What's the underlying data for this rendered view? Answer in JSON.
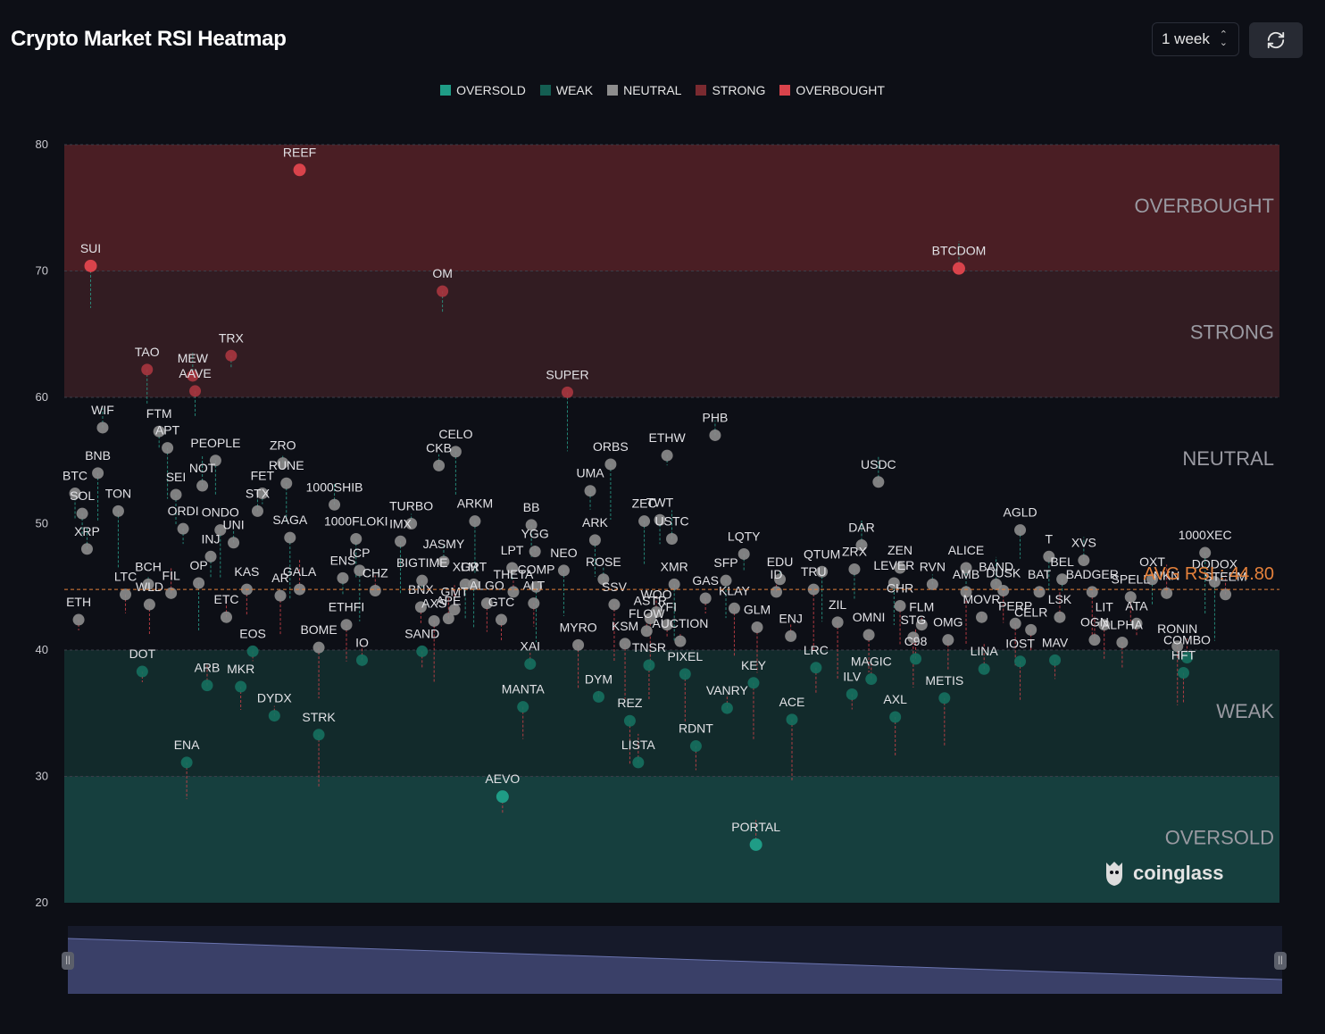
{
  "header": {
    "title": "Crypto Market RSI Heatmap"
  },
  "controls": {
    "period": "1 week",
    "refresh_icon": "refresh-icon"
  },
  "legend": [
    {
      "label": "OVERSOLD",
      "color": "#1f9c86"
    },
    {
      "label": "WEAK",
      "color": "#145e52"
    },
    {
      "label": "NEUTRAL",
      "color": "#8d8d8d"
    },
    {
      "label": "STRONG",
      "color": "#7a2a30"
    },
    {
      "label": "OVERBOUGHT",
      "color": "#d9434b"
    }
  ],
  "logo": {
    "text": "coinglass"
  },
  "chart_data": {
    "type": "scatter",
    "title": "Crypto Market RSI Heatmap",
    "ylim": [
      20,
      80
    ],
    "yticks": [
      20,
      30,
      40,
      50,
      60,
      70,
      80
    ],
    "grid": false,
    "zones": [
      {
        "label": "OVERBOUGHT",
        "from": 70,
        "to": 80,
        "color": "#4a1e24"
      },
      {
        "label": "STRONG",
        "from": 60,
        "to": 70,
        "color": "#321c22"
      },
      {
        "label": "NEUTRAL",
        "from": 40,
        "to": 60,
        "color": "#0d0f16"
      },
      {
        "label": "WEAK",
        "from": 30,
        "to": 40,
        "color": "#122a2b"
      },
      {
        "label": "OVERSOLD",
        "from": 20,
        "to": 30,
        "color": "#163f3e"
      }
    ],
    "average": {
      "label": "AVG RSI : 44.80",
      "value": 44.8
    },
    "points": [
      {
        "name": "REEF",
        "x": 0.19,
        "rsi": 78.0
      },
      {
        "name": "SUI",
        "x": 0.016,
        "rsi": 70.4
      },
      {
        "name": "OM",
        "x": 0.309,
        "rsi": 68.4
      },
      {
        "name": "BTCDOM",
        "x": 0.739,
        "rsi": 70.2
      },
      {
        "name": "TAO",
        "x": 0.063,
        "rsi": 62.2
      },
      {
        "name": "TRX",
        "x": 0.133,
        "rsi": 63.3
      },
      {
        "name": "MEW",
        "x": 0.101,
        "rsi": 61.7
      },
      {
        "name": "AAVE",
        "x": 0.103,
        "rsi": 60.5
      },
      {
        "name": "SUPER",
        "x": 0.413,
        "rsi": 60.4
      },
      {
        "name": "WIF",
        "x": 0.026,
        "rsi": 57.6
      },
      {
        "name": "FTM",
        "x": 0.073,
        "rsi": 57.3
      },
      {
        "name": "APT",
        "x": 0.08,
        "rsi": 56.0
      },
      {
        "name": "PHB",
        "x": 0.536,
        "rsi": 57.0
      },
      {
        "name": "ETHW",
        "x": 0.496,
        "rsi": 55.4
      },
      {
        "name": "CELO",
        "x": 0.32,
        "rsi": 55.7
      },
      {
        "name": "CKB",
        "x": 0.306,
        "rsi": 54.6
      },
      {
        "name": "ORBS",
        "x": 0.449,
        "rsi": 54.7
      },
      {
        "name": "PEOPLE",
        "x": 0.12,
        "rsi": 55.0
      },
      {
        "name": "ZRO",
        "x": 0.176,
        "rsi": 54.8
      },
      {
        "name": "BNB",
        "x": 0.022,
        "rsi": 54.0
      },
      {
        "name": "BTC",
        "x": 0.003,
        "rsi": 52.4
      },
      {
        "name": "NOT",
        "x": 0.109,
        "rsi": 53.0
      },
      {
        "name": "RUNE",
        "x": 0.179,
        "rsi": 53.2
      },
      {
        "name": "UMA",
        "x": 0.432,
        "rsi": 52.6
      },
      {
        "name": "USDC",
        "x": 0.672,
        "rsi": 53.3
      },
      {
        "name": "SEI",
        "x": 0.087,
        "rsi": 52.3
      },
      {
        "name": "FET",
        "x": 0.159,
        "rsi": 52.4
      },
      {
        "name": "1000SHIB",
        "x": 0.219,
        "rsi": 51.5
      },
      {
        "name": "SOL",
        "x": 0.009,
        "rsi": 50.8
      },
      {
        "name": "TON",
        "x": 0.039,
        "rsi": 51.0
      },
      {
        "name": "STX",
        "x": 0.155,
        "rsi": 51.0
      },
      {
        "name": "ORDI",
        "x": 0.093,
        "rsi": 49.6
      },
      {
        "name": "ONDO",
        "x": 0.124,
        "rsi": 49.5
      },
      {
        "name": "UNI",
        "x": 0.135,
        "rsi": 48.5
      },
      {
        "name": "SAGA",
        "x": 0.182,
        "rsi": 48.9
      },
      {
        "name": "1000FLOKI",
        "x": 0.237,
        "rsi": 48.8
      },
      {
        "name": "TURBO",
        "x": 0.283,
        "rsi": 50.0
      },
      {
        "name": "ARKM",
        "x": 0.336,
        "rsi": 50.2
      },
      {
        "name": "BB",
        "x": 0.383,
        "rsi": 49.9
      },
      {
        "name": "YGG",
        "x": 0.386,
        "rsi": 47.8
      },
      {
        "name": "ZEC",
        "x": 0.477,
        "rsi": 50.2
      },
      {
        "name": "TWT",
        "x": 0.49,
        "rsi": 50.3
      },
      {
        "name": "USTC",
        "x": 0.5,
        "rsi": 48.8
      },
      {
        "name": "ARK",
        "x": 0.436,
        "rsi": 48.7
      },
      {
        "name": "LQTY",
        "x": 0.56,
        "rsi": 47.6
      },
      {
        "name": "DAR",
        "x": 0.658,
        "rsi": 48.3
      },
      {
        "name": "AGLD",
        "x": 0.79,
        "rsi": 49.5
      },
      {
        "name": "1000XEC",
        "x": 0.944,
        "rsi": 47.7
      },
      {
        "name": "XRP",
        "x": 0.013,
        "rsi": 48.0
      },
      {
        "name": "INJ",
        "x": 0.116,
        "rsi": 47.4
      },
      {
        "name": "IMX",
        "x": 0.274,
        "rsi": 48.6
      },
      {
        "name": "JASMY",
        "x": 0.31,
        "rsi": 47.0
      },
      {
        "name": "LPT",
        "x": 0.367,
        "rsi": 46.5
      },
      {
        "name": "NEO",
        "x": 0.41,
        "rsi": 46.3
      },
      {
        "name": "ROSE",
        "x": 0.443,
        "rsi": 45.6
      },
      {
        "name": "XMR",
        "x": 0.502,
        "rsi": 45.2
      },
      {
        "name": "SFP",
        "x": 0.545,
        "rsi": 45.5
      },
      {
        "name": "EDU",
        "x": 0.59,
        "rsi": 45.6
      },
      {
        "name": "QTUM",
        "x": 0.625,
        "rsi": 46.2
      },
      {
        "name": "ZRX",
        "x": 0.652,
        "rsi": 46.4
      },
      {
        "name": "ZEN",
        "x": 0.69,
        "rsi": 46.5
      },
      {
        "name": "LEVER",
        "x": 0.685,
        "rsi": 45.3
      },
      {
        "name": "ALICE",
        "x": 0.745,
        "rsi": 46.5
      },
      {
        "name": "BAND",
        "x": 0.77,
        "rsi": 45.2
      },
      {
        "name": "T",
        "x": 0.814,
        "rsi": 47.4
      },
      {
        "name": "BEL",
        "x": 0.825,
        "rsi": 45.6
      },
      {
        "name": "XVS",
        "x": 0.843,
        "rsi": 47.1
      },
      {
        "name": "OXT",
        "x": 0.9,
        "rsi": 45.6
      },
      {
        "name": "DODOX",
        "x": 0.952,
        "rsi": 45.4
      },
      {
        "name": "STEEM",
        "x": 0.961,
        "rsi": 44.4
      },
      {
        "name": "ENS",
        "x": 0.226,
        "rsi": 45.7
      },
      {
        "name": "ICP",
        "x": 0.24,
        "rsi": 46.3
      },
      {
        "name": "CHZ",
        "x": 0.253,
        "rsi": 44.7
      },
      {
        "name": "BIGTIME",
        "x": 0.292,
        "rsi": 45.5
      },
      {
        "name": "GRT",
        "x": 0.335,
        "rsi": 45.2
      },
      {
        "name": "THETA",
        "x": 0.368,
        "rsi": 44.6
      },
      {
        "name": "COMP",
        "x": 0.387,
        "rsi": 45.0
      },
      {
        "name": "XLM",
        "x": 0.328,
        "rsi": 45.2
      },
      {
        "name": "BCH",
        "x": 0.064,
        "rsi": 45.2
      },
      {
        "name": "OP",
        "x": 0.106,
        "rsi": 45.3
      },
      {
        "name": "KAS",
        "x": 0.146,
        "rsi": 44.8
      },
      {
        "name": "GALA",
        "x": 0.19,
        "rsi": 44.8
      },
      {
        "name": "AR",
        "x": 0.174,
        "rsi": 44.3
      },
      {
        "name": "LTC",
        "x": 0.045,
        "rsi": 44.4
      },
      {
        "name": "FIL",
        "x": 0.083,
        "rsi": 44.5
      },
      {
        "name": "WLD",
        "x": 0.065,
        "rsi": 43.6
      },
      {
        "name": "ETH",
        "x": 0.006,
        "rsi": 42.4
      },
      {
        "name": "ETC",
        "x": 0.129,
        "rsi": 42.6
      },
      {
        "name": "ALT",
        "x": 0.385,
        "rsi": 43.7
      },
      {
        "name": "SSV",
        "x": 0.452,
        "rsi": 43.6
      },
      {
        "name": "WOO",
        "x": 0.487,
        "rsi": 43.0
      },
      {
        "name": "GAS",
        "x": 0.528,
        "rsi": 44.1
      },
      {
        "name": "KLAY",
        "x": 0.552,
        "rsi": 43.3
      },
      {
        "name": "ID",
        "x": 0.587,
        "rsi": 44.6
      },
      {
        "name": "TRU",
        "x": 0.618,
        "rsi": 44.8
      },
      {
        "name": "CHR",
        "x": 0.69,
        "rsi": 43.5
      },
      {
        "name": "RVN",
        "x": 0.717,
        "rsi": 45.2
      },
      {
        "name": "AMB",
        "x": 0.745,
        "rsi": 44.6
      },
      {
        "name": "DUSK",
        "x": 0.776,
        "rsi": 44.7
      },
      {
        "name": "BAT",
        "x": 0.806,
        "rsi": 44.6
      },
      {
        "name": "BADGER",
        "x": 0.85,
        "rsi": 44.6
      },
      {
        "name": "SPELL",
        "x": 0.882,
        "rsi": 44.2
      },
      {
        "name": "NKN",
        "x": 0.912,
        "rsi": 44.5
      },
      {
        "name": "ETHFI",
        "x": 0.229,
        "rsi": 42.0
      },
      {
        "name": "BNX",
        "x": 0.291,
        "rsi": 43.4
      },
      {
        "name": "GMT",
        "x": 0.319,
        "rsi": 43.2
      },
      {
        "name": "ALGO",
        "x": 0.346,
        "rsi": 43.7
      },
      {
        "name": "AXS",
        "x": 0.302,
        "rsi": 42.3
      },
      {
        "name": "APE",
        "x": 0.314,
        "rsi": 42.5
      },
      {
        "name": "GTC",
        "x": 0.358,
        "rsi": 42.4
      },
      {
        "name": "ASTR",
        "x": 0.482,
        "rsi": 42.5
      },
      {
        "name": "FLOW",
        "x": 0.479,
        "rsi": 41.5
      },
      {
        "name": "YFI",
        "x": 0.496,
        "rsi": 42.0
      },
      {
        "name": "GLM",
        "x": 0.571,
        "rsi": 41.8
      },
      {
        "name": "ENJ",
        "x": 0.599,
        "rsi": 41.1
      },
      {
        "name": "ZIL",
        "x": 0.638,
        "rsi": 42.2
      },
      {
        "name": "OMNI",
        "x": 0.664,
        "rsi": 41.2
      },
      {
        "name": "FLM",
        "x": 0.708,
        "rsi": 42.0
      },
      {
        "name": "STG",
        "x": 0.701,
        "rsi": 41.0
      },
      {
        "name": "OMG",
        "x": 0.73,
        "rsi": 40.8
      },
      {
        "name": "MOVR",
        "x": 0.758,
        "rsi": 42.6
      },
      {
        "name": "PERP",
        "x": 0.786,
        "rsi": 42.1
      },
      {
        "name": "CELR",
        "x": 0.799,
        "rsi": 41.6
      },
      {
        "name": "LSK",
        "x": 0.823,
        "rsi": 42.6
      },
      {
        "name": "LIT",
        "x": 0.86,
        "rsi": 42.0
      },
      {
        "name": "ATA",
        "x": 0.887,
        "rsi": 42.1
      },
      {
        "name": "OGN",
        "x": 0.852,
        "rsi": 40.8
      },
      {
        "name": "ALPHA",
        "x": 0.875,
        "rsi": 40.6
      },
      {
        "name": "RONIN",
        "x": 0.921,
        "rsi": 40.3
      },
      {
        "name": "COMBO",
        "x": 0.929,
        "rsi": 39.4
      },
      {
        "name": "SAND",
        "x": 0.292,
        "rsi": 39.9
      },
      {
        "name": "BOME",
        "x": 0.206,
        "rsi": 40.2
      },
      {
        "name": "IO",
        "x": 0.242,
        "rsi": 39.2
      },
      {
        "name": "EOS",
        "x": 0.151,
        "rsi": 39.9
      },
      {
        "name": "MYRO",
        "x": 0.422,
        "rsi": 40.4
      },
      {
        "name": "XAI",
        "x": 0.382,
        "rsi": 38.9
      },
      {
        "name": "KSM",
        "x": 0.461,
        "rsi": 40.5
      },
      {
        "name": "TNSR",
        "x": 0.481,
        "rsi": 38.8
      },
      {
        "name": "AUCTION",
        "x": 0.507,
        "rsi": 40.7
      },
      {
        "name": "PIXEL",
        "x": 0.511,
        "rsi": 38.1
      },
      {
        "name": "LRC",
        "x": 0.62,
        "rsi": 38.6
      },
      {
        "name": "C98",
        "x": 0.703,
        "rsi": 39.3
      },
      {
        "name": "IOST",
        "x": 0.79,
        "rsi": 39.1
      },
      {
        "name": "MAV",
        "x": 0.819,
        "rsi": 39.2
      },
      {
        "name": "LINA",
        "x": 0.76,
        "rsi": 38.5
      },
      {
        "name": "HFT",
        "x": 0.926,
        "rsi": 38.2
      },
      {
        "name": "DOT",
        "x": 0.059,
        "rsi": 38.3
      },
      {
        "name": "ARB",
        "x": 0.113,
        "rsi": 37.2
      },
      {
        "name": "MKR",
        "x": 0.141,
        "rsi": 37.1
      },
      {
        "name": "KEY",
        "x": 0.568,
        "rsi": 37.4
      },
      {
        "name": "MAGIC",
        "x": 0.666,
        "rsi": 37.7
      },
      {
        "name": "ILV",
        "x": 0.65,
        "rsi": 36.5
      },
      {
        "name": "METIS",
        "x": 0.727,
        "rsi": 36.2
      },
      {
        "name": "VANRY",
        "x": 0.546,
        "rsi": 35.4
      },
      {
        "name": "ACE",
        "x": 0.6,
        "rsi": 34.5
      },
      {
        "name": "AXL",
        "x": 0.686,
        "rsi": 34.7
      },
      {
        "name": "DYDX",
        "x": 0.169,
        "rsi": 34.8
      },
      {
        "name": "STRK",
        "x": 0.206,
        "rsi": 33.3
      },
      {
        "name": "MANTA",
        "x": 0.376,
        "rsi": 35.5
      },
      {
        "name": "DYM",
        "x": 0.439,
        "rsi": 36.3
      },
      {
        "name": "REZ",
        "x": 0.465,
        "rsi": 34.4
      },
      {
        "name": "RDNT",
        "x": 0.52,
        "rsi": 32.4
      },
      {
        "name": "LISTA",
        "x": 0.472,
        "rsi": 31.1
      },
      {
        "name": "ENA",
        "x": 0.096,
        "rsi": 31.1
      },
      {
        "name": "AEVO",
        "x": 0.359,
        "rsi": 28.4
      },
      {
        "name": "PORTAL",
        "x": 0.57,
        "rsi": 24.6
      }
    ]
  }
}
